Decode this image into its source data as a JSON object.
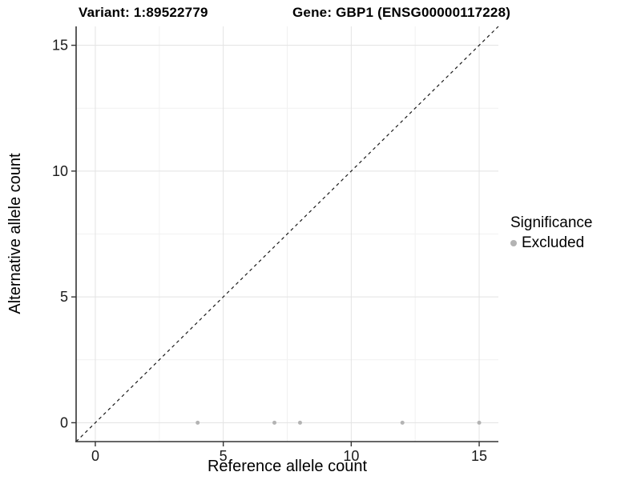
{
  "chart_data": {
    "type": "scatter",
    "title": {
      "left": "Variant: 1:89522779",
      "right": "Gene: GBP1 (ENSG00000117228)"
    },
    "xlabel": "Reference allele count",
    "ylabel": "Alternative allele count",
    "xlim": [
      -0.75,
      15.75
    ],
    "ylim": [
      -0.75,
      15.75
    ],
    "xticks": [
      0,
      5,
      10,
      15
    ],
    "yticks": [
      0,
      5,
      10,
      15
    ],
    "xminor": [
      2.5,
      7.5,
      12.5
    ],
    "yminor": [
      2.5,
      7.5,
      12.5
    ],
    "grid": "major+minor, no panel border",
    "reference_line": {
      "type": "identity y=x",
      "style": "dashed",
      "color": "#1a1a1a"
    },
    "series": [
      {
        "name": "Excluded",
        "color": "#b3b3b3",
        "points": [
          [
            4,
            0
          ],
          [
            7,
            0
          ],
          [
            8,
            0
          ],
          [
            12,
            0
          ],
          [
            15,
            0
          ]
        ]
      }
    ],
    "legend": {
      "title": "Significance",
      "position": "right",
      "entries": [
        {
          "label": "Excluded",
          "color": "#b3b3b3"
        }
      ]
    },
    "colors": {
      "background": "#ffffff",
      "grid_major": "#e3e3e3",
      "grid_minor": "#f1f1f1",
      "axis_line": "#333333",
      "tick_mark": "#333333",
      "tick_label": "#1a1a1a",
      "text": "#000000"
    }
  }
}
